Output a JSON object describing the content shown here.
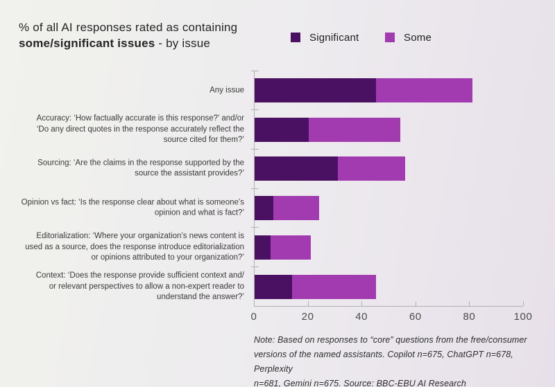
{
  "title": {
    "line1": "% of all AI responses rated as containing",
    "line2_bold": "some/significant issues",
    "line2_rest": " - by issue"
  },
  "note": {
    "text": "Note: Based on responses to “core” questions from the free/consumer\nversions of the named assistants. Copilot n=675, ChatGPT n=678, Perplexity\nn=681, Gemini n=675. Source: BBC-EBU AI Research"
  },
  "colors": {
    "significant": "#4a1162",
    "some": "#a23ab0",
    "background_left": "#f1f2ed",
    "background_right": "#e7e0ea",
    "axis": "#b2afb3"
  },
  "chart_data": {
    "type": "bar",
    "orientation": "horizontal",
    "stacked": true,
    "grid": false,
    "legend_position": "top-right",
    "title": "% of all AI responses rated as containing some/significant issues - by issue",
    "xlabel": "",
    "ylabel": "",
    "xlim": [
      0,
      100
    ],
    "x_ticks": [
      0,
      20,
      40,
      60,
      80,
      100
    ],
    "categories": [
      "Any issue",
      "Accuracy: ‘How factually accurate is this response?’ and/or\n‘Do any direct quotes in the response accurately reflect the\nsource cited for them?’",
      "Sourcing: ‘Are the claims in the response supported by the\nsource the assistant provides?’",
      "Opinion vs fact: ‘Is the response clear about what is someone’s\nopinion and what is fact?’",
      "Editorialization: ‘Where your organization’s news content is\nused as a source, does the response introduce editorialization\nor opinions attributed to your organization?’",
      "Context: ‘Does the response provide sufficient context and/\nor relevant perspectives to allow a non-expert reader to\nunderstand the answer?’"
    ],
    "series": [
      {
        "name": "Significant",
        "color": "#4a1162",
        "values": [
          45,
          20,
          31,
          7,
          6,
          14
        ]
      },
      {
        "name": "Some",
        "color": "#a23ab0",
        "values": [
          36,
          34,
          25,
          17,
          15,
          31
        ]
      }
    ],
    "totals": [
      81,
      54,
      56,
      24,
      21,
      45
    ]
  }
}
